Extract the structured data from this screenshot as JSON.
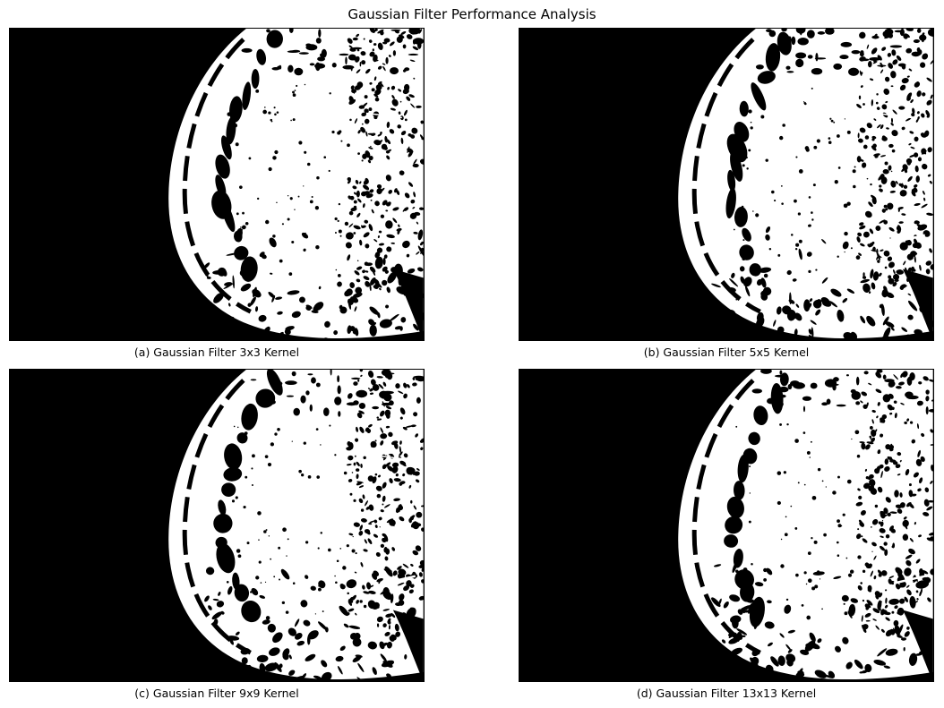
{
  "figure": {
    "title": "Gaussian Filter Performance Analysis"
  },
  "panels": [
    {
      "caption": "(a) Gaussian Filter 3x3 Kernel",
      "image": "binary-mammogram-threshold",
      "kernel": 3
    },
    {
      "caption": "(b) Gaussian Filter 5x5 Kernel",
      "image": "binary-mammogram-threshold",
      "kernel": 5
    },
    {
      "caption": "(c) Gaussian Filter 9x9 Kernel",
      "image": "binary-mammogram-threshold",
      "kernel": 9
    },
    {
      "caption": "(d) Gaussian Filter 13x13 Kernel",
      "image": "binary-mammogram-threshold",
      "kernel": 13
    }
  ],
  "colors": {
    "background": "#000000",
    "tissue": "#ffffff",
    "border": "#000000"
  }
}
